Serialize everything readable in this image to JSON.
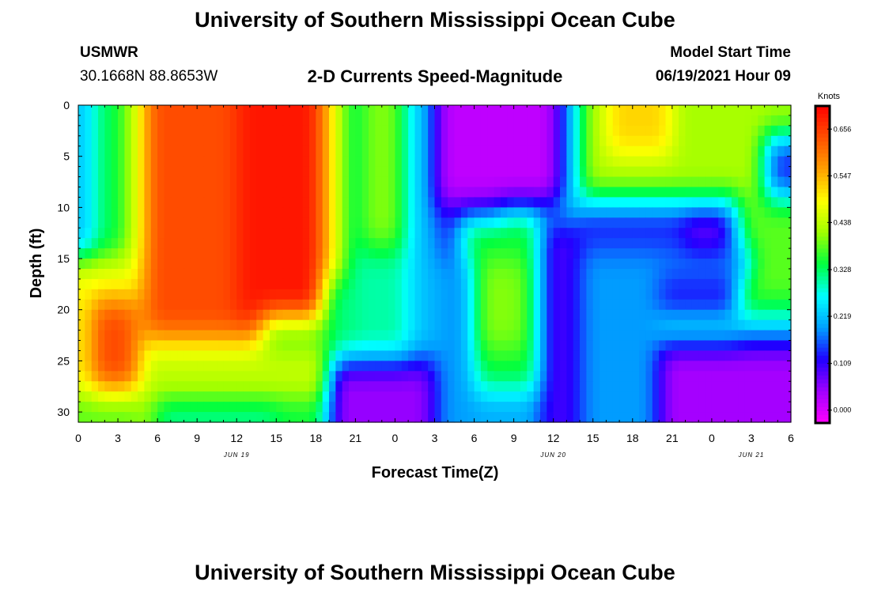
{
  "header": {
    "title": "University of Southern Mississippi Ocean Cube",
    "station_name": "USMWR",
    "coordinates": "30.1668N  88.8653W",
    "plot_title": "2-D Currents Speed-Magnitude",
    "model_start_label": "Model Start Time",
    "model_start_value": "06/19/2021 Hour 09"
  },
  "footer": {
    "title": "University of Southern Mississippi Ocean Cube"
  },
  "chart_data": {
    "type": "heatmap",
    "title": "2-D Currents Speed-Magnitude",
    "xlabel": "Forecast Time(Z)",
    "ylabel": "Depth (ft)",
    "y_range": [
      0,
      31
    ],
    "y_direction": "downward",
    "y_ticks": [
      0,
      5,
      10,
      15,
      20,
      25,
      30
    ],
    "x_range_hours": [
      0,
      54
    ],
    "x_tick_labels": [
      "0",
      "3",
      "6",
      "9",
      "12",
      "15",
      "18",
      "21",
      "0",
      "3",
      "6",
      "9",
      "12",
      "15",
      "18",
      "21",
      "0",
      "3",
      "6"
    ],
    "date_labels": [
      {
        "label": "JUN 19",
        "at_tick": 4
      },
      {
        "label": "JUN 20",
        "at_tick": 12
      },
      {
        "label": "JUN 21",
        "at_tick": 17
      }
    ],
    "colorbar": {
      "unit": "Knots",
      "min": -0.03,
      "max": 0.71,
      "tick_values": [
        0.0,
        0.109,
        0.219,
        0.328,
        0.438,
        0.547,
        0.656
      ],
      "tick_labels": [
        "0.000",
        "0.109",
        "0.219",
        "0.328",
        "0.438",
        "0.547",
        "0.656"
      ],
      "colors": [
        "#ff00ff",
        "#a000ff",
        "#2000ff",
        "#00a0ff",
        "#00ffff",
        "#00ff40",
        "#a0ff00",
        "#ffff00",
        "#ffa000",
        "#ff5000",
        "#ff0000"
      ]
    },
    "speed_features_knots": [
      {
        "t0": 0,
        "t1": 54,
        "d0": 0,
        "d1": 31,
        "v": 0.32
      },
      {
        "t0": 0,
        "t1": 1.2,
        "d0": 0,
        "d1": 17,
        "v": 0.2
      },
      {
        "t0": 1.2,
        "t1": 3.5,
        "d0": 0,
        "d1": 15,
        "v": 0.33
      },
      {
        "t0": 3.5,
        "t1": 5.5,
        "d0": 0,
        "d1": 16,
        "v": 0.44
      },
      {
        "t0": 0,
        "t1": 5.5,
        "d0": 15,
        "d1": 31,
        "v": 0.48
      },
      {
        "t0": 1,
        "t1": 4.5,
        "d0": 19,
        "d1": 28,
        "v": 0.64
      },
      {
        "t0": 0,
        "t1": 5,
        "d0": 28.5,
        "d1": 31,
        "v": 0.38
      },
      {
        "t0": 5,
        "t1": 14,
        "d0": 0,
        "d1": 23,
        "v": 0.64
      },
      {
        "t0": 12,
        "t1": 18.5,
        "d0": 0,
        "d1": 21,
        "v": 0.69
      },
      {
        "t0": 5,
        "t1": 19,
        "d0": 23,
        "d1": 29,
        "v": 0.44
      },
      {
        "t0": 6,
        "t1": 15,
        "d0": 29,
        "d1": 31,
        "v": 0.28
      },
      {
        "t0": 18.5,
        "t1": 20,
        "d0": 0,
        "d1": 17,
        "v": 0.5
      },
      {
        "t0": 20,
        "t1": 21.5,
        "d0": 0,
        "d1": 20,
        "v": 0.32
      },
      {
        "t0": 21.5,
        "t1": 24.5,
        "d0": 0,
        "d1": 14,
        "v": 0.4
      },
      {
        "t0": 21,
        "t1": 25,
        "d0": 14,
        "d1": 25,
        "v": 0.3
      },
      {
        "t0": 19,
        "t1": 27,
        "d0": 25,
        "d1": 31,
        "v": 0.05
      },
      {
        "t0": 25,
        "t1": 27,
        "d0": 0,
        "d1": 25,
        "v": 0.22
      },
      {
        "t0": 27,
        "t1": 36.5,
        "d0": 0,
        "d1": 10,
        "v": 0.02
      },
      {
        "t0": 27,
        "t1": 32,
        "d0": 10,
        "d1": 15,
        "v": 0.14
      },
      {
        "t0": 29,
        "t1": 35,
        "d0": 11,
        "d1": 28,
        "v": 0.34
      },
      {
        "t0": 30,
        "t1": 34,
        "d0": 15,
        "d1": 24,
        "v": 0.4
      },
      {
        "t0": 27,
        "t1": 30,
        "d0": 15,
        "d1": 31,
        "v": 0.19
      },
      {
        "t0": 30,
        "t1": 36,
        "d0": 28,
        "d1": 31,
        "v": 0.2
      },
      {
        "t0": 35,
        "t1": 40,
        "d0": 11,
        "d1": 31,
        "v": 0.1
      },
      {
        "t0": 36.5,
        "t1": 38,
        "d0": 0,
        "d1": 10,
        "v": 0.2
      },
      {
        "t0": 38,
        "t1": 54,
        "d0": 0,
        "d1": 9,
        "v": 0.42
      },
      {
        "t0": 40,
        "t1": 45,
        "d0": 0,
        "d1": 5,
        "v": 0.52
      },
      {
        "t0": 52,
        "t1": 54,
        "d0": 3,
        "d1": 9,
        "v": 0.14
      },
      {
        "t0": 38,
        "t1": 50,
        "d0": 9,
        "d1": 10.5,
        "v": 0.24
      },
      {
        "t0": 38,
        "t1": 50,
        "d0": 10.5,
        "d1": 14.5,
        "v": 0.13
      },
      {
        "t0": 46,
        "t1": 49,
        "d0": 11,
        "d1": 14,
        "v": 0.06
      },
      {
        "t0": 50,
        "t1": 54,
        "d0": 9,
        "d1": 20,
        "v": 0.38
      },
      {
        "t0": 38,
        "t1": 44,
        "d0": 14.5,
        "d1": 31,
        "v": 0.19
      },
      {
        "t0": 44,
        "t1": 51,
        "d0": 14.5,
        "d1": 17,
        "v": 0.18
      },
      {
        "t0": 44,
        "t1": 50,
        "d0": 17,
        "d1": 21,
        "v": 0.12
      },
      {
        "t0": 50,
        "t1": 54,
        "d0": 20,
        "d1": 23,
        "v": 0.25
      },
      {
        "t0": 44,
        "t1": 54,
        "d0": 23,
        "d1": 31,
        "v": 0.04
      }
    ]
  }
}
